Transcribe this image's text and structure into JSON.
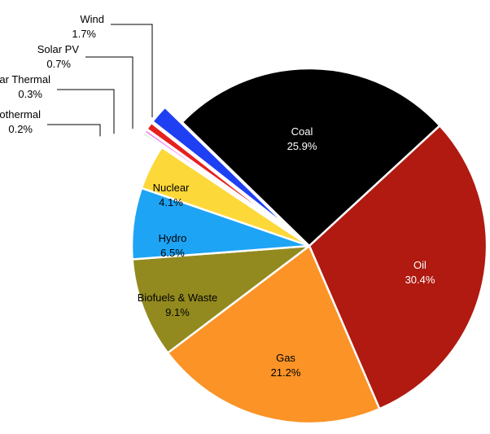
{
  "chart_data": {
    "type": "pie",
    "title": "",
    "slices": [
      {
        "label": "Coal",
        "value": 25.9,
        "value_label": "25.9%",
        "color": "#000000",
        "text_color": "#ffffff",
        "exploded": false,
        "label_inside": true
      },
      {
        "label": "Oil",
        "value": 30.4,
        "value_label": "30.4%",
        "color": "#b01a10",
        "text_color": "#ffffff",
        "exploded": false,
        "label_inside": true
      },
      {
        "label": "Gas",
        "value": 21.2,
        "value_label": "21.2%",
        "color": "#fb9327",
        "text_color": "#000000",
        "exploded": false,
        "label_inside": true
      },
      {
        "label": "Biofuels & Waste",
        "value": 9.1,
        "value_label": "9.1%",
        "color": "#938a1f",
        "text_color": "#000000",
        "exploded": false,
        "label_inside": true
      },
      {
        "label": "Hydro",
        "value": 6.5,
        "value_label": "6.5%",
        "color": "#1ea4f5",
        "text_color": "#000000",
        "exploded": false,
        "label_inside": true
      },
      {
        "label": "Nuclear",
        "value": 4.1,
        "value_label": "4.1%",
        "color": "#fdd839",
        "text_color": "#000000",
        "exploded": false,
        "label_inside": true
      },
      {
        "label": "Geothermal",
        "value": 0.2,
        "value_label": "0.2%",
        "color": "#1f8e26",
        "text_color": "#000000",
        "exploded": true,
        "label_inside": false
      },
      {
        "label": "Solar Thermal",
        "value": 0.3,
        "value_label": "0.3%",
        "color": "#f279f4",
        "text_color": "#000000",
        "exploded": true,
        "label_inside": false
      },
      {
        "label": "Solar PV",
        "value": 0.7,
        "value_label": "0.7%",
        "color": "#e5211f",
        "text_color": "#000000",
        "exploded": true,
        "label_inside": false
      },
      {
        "label": "Wind",
        "value": 1.7,
        "value_label": "1.7%",
        "color": "#1f3ff2",
        "text_color": "#000000",
        "exploded": true,
        "label_inside": false
      }
    ]
  }
}
